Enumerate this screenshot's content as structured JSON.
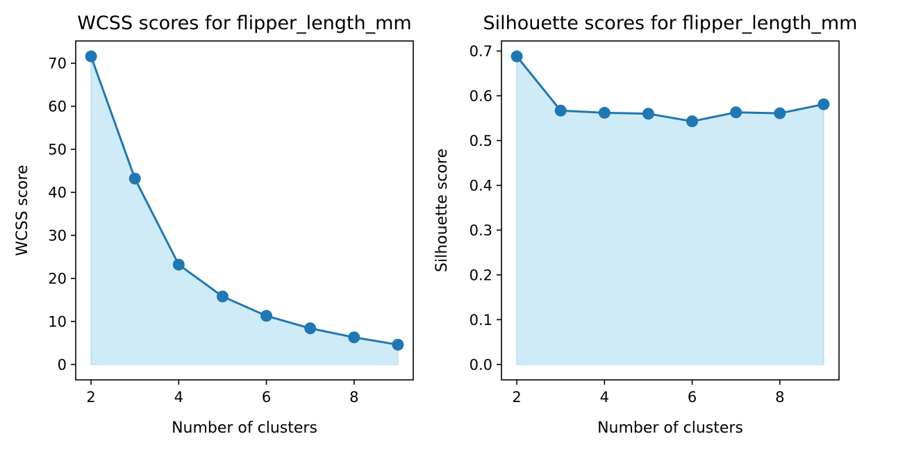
{
  "chart_data": [
    {
      "type": "line",
      "title": "WCSS scores for flipper_length_mm",
      "xlabel": "Number of clusters",
      "ylabel": "WCSS score",
      "x": [
        2,
        3,
        4,
        5,
        6,
        7,
        8,
        9
      ],
      "series": [
        {
          "values": [
            71.6,
            43.2,
            23.2,
            15.8,
            11.3,
            8.4,
            6.3,
            4.6
          ]
        }
      ],
      "xticks": [
        2,
        4,
        6,
        8
      ],
      "xtick_labels": [
        "2",
        "4",
        "6",
        "8"
      ],
      "yticks": [
        0,
        10,
        20,
        30,
        40,
        50,
        60,
        70
      ],
      "ytick_labels": [
        "0",
        "10",
        "20",
        "30",
        "40",
        "50",
        "60",
        "70"
      ],
      "xlim": [
        1.65,
        9.35
      ],
      "ylim": [
        -3.58,
        75.18
      ],
      "fill_under_line": true,
      "grid": false,
      "colors": {
        "line": "#1f77b4",
        "fill": "#87ceeb",
        "axes": "#000000"
      }
    },
    {
      "type": "line",
      "title": "Silhouette scores for flipper_length_mm",
      "xlabel": "Number of clusters",
      "ylabel": "Silhouette score",
      "x": [
        2,
        3,
        4,
        5,
        6,
        7,
        8,
        9
      ],
      "series": [
        {
          "values": [
            0.688,
            0.567,
            0.562,
            0.56,
            0.543,
            0.563,
            0.561,
            0.581
          ]
        }
      ],
      "xticks": [
        2,
        4,
        6,
        8
      ],
      "xtick_labels": [
        "2",
        "4",
        "6",
        "8"
      ],
      "yticks": [
        0,
        0.1,
        0.2,
        0.3,
        0.4,
        0.5,
        0.6,
        0.7
      ],
      "ytick_labels": [
        "0.0",
        "0.1",
        "0.2",
        "0.3",
        "0.4",
        "0.5",
        "0.6",
        "0.7"
      ],
      "xlim": [
        1.65,
        9.35
      ],
      "ylim": [
        -0.0344,
        0.7224
      ],
      "fill_under_line": true,
      "grid": false,
      "colors": {
        "line": "#1f77b4",
        "fill": "#87ceeb",
        "axes": "#000000"
      }
    }
  ]
}
